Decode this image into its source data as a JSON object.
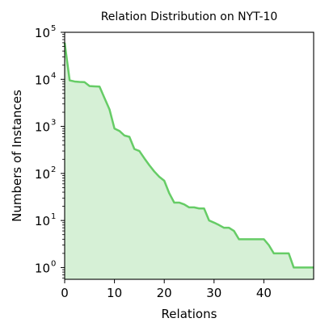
{
  "chart_data": {
    "type": "area",
    "title": "Relation Distribution on NYT-10",
    "xlabel": "Relations",
    "ylabel": "Numbers of Instances",
    "xlim": [
      0,
      50
    ],
    "ylim_log10": [
      -0.25,
      5
    ],
    "yscale": "log",
    "grid": false,
    "legend": "none",
    "x_ticks": [
      0,
      10,
      20,
      30,
      40
    ],
    "x_tick_labels": [
      "0",
      "10",
      "20",
      "30",
      "40"
    ],
    "y_ticks": [
      1,
      10,
      100,
      1000,
      10000,
      100000
    ],
    "y_tick_labels": [
      {
        "base": "10",
        "exp": "0"
      },
      {
        "base": "10",
        "exp": "1"
      },
      {
        "base": "10",
        "exp": "2"
      },
      {
        "base": "10",
        "exp": "3"
      },
      {
        "base": "10",
        "exp": "4"
      },
      {
        "base": "10",
        "exp": "5"
      }
    ],
    "colors": {
      "line": "#66cc66",
      "fill": "#d6f0d6",
      "axis": "#000000"
    },
    "series": [
      {
        "x": [
          0,
          1,
          2,
          3,
          4,
          5,
          6,
          7,
          8,
          9,
          10,
          11,
          12,
          13,
          14,
          15,
          16,
          17,
          18,
          19,
          20,
          21,
          22,
          23,
          24,
          25,
          26,
          27,
          28,
          29,
          30,
          31,
          32,
          33,
          34,
          35,
          36,
          37,
          38,
          39,
          40,
          41,
          42,
          43,
          44,
          45,
          46,
          47,
          48,
          49,
          50
        ],
        "values": [
          60000,
          9500,
          9000,
          8800,
          8700,
          7200,
          7100,
          7000,
          4000,
          2300,
          900,
          800,
          640,
          600,
          330,
          300,
          210,
          150,
          110,
          85,
          70,
          38,
          24,
          24,
          22,
          19,
          19,
          18,
          18,
          10,
          9,
          8,
          7,
          7,
          6,
          4,
          4,
          4,
          4,
          4,
          4,
          3,
          2,
          2,
          2,
          2,
          1,
          1,
          1,
          1,
          1
        ]
      }
    ]
  }
}
